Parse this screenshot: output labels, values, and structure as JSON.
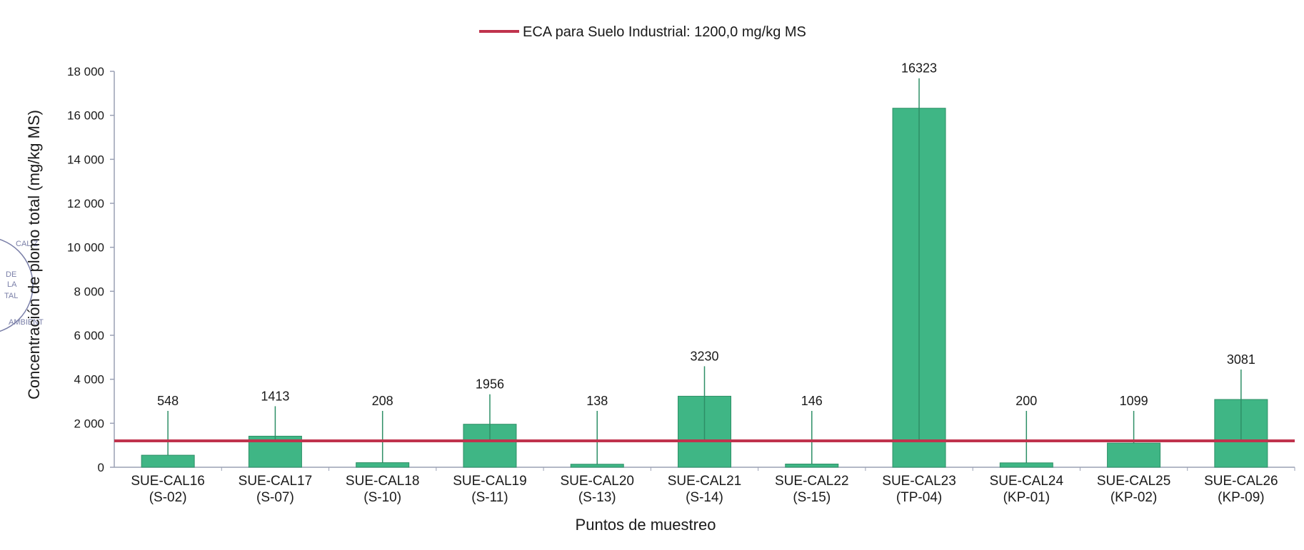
{
  "colors": {
    "bar_fill": "#3fb685",
    "bar_stroke": "#2e8f66",
    "threshold_line": "#c0334d",
    "axis": "#9aa0b4",
    "stamp": "#7a7fa8"
  },
  "legend": {
    "threshold_label": "ECA para Suelo Industrial: 1200,0 mg/kg MS"
  },
  "chart_data": {
    "type": "bar",
    "title": "",
    "xlabel": "Puntos de muestreo",
    "ylabel": "Concentración de plomo total (mg/kg MS)",
    "ylim": [
      0,
      18000
    ],
    "yticks": [
      0,
      2000,
      4000,
      6000,
      8000,
      10000,
      12000,
      14000,
      16000,
      18000
    ],
    "ytick_labels": [
      "0",
      "2 000",
      "4 000",
      "6 000",
      "8 000",
      "10 000",
      "12 000",
      "14 000",
      "16 000",
      "18 000"
    ],
    "categories": [
      [
        "SUE-CAL16",
        "(S-02)"
      ],
      [
        "SUE-CAL17",
        "(S-07)"
      ],
      [
        "SUE-CAL18",
        "(S-10)"
      ],
      [
        "SUE-CAL19",
        "(S-11)"
      ],
      [
        "SUE-CAL20",
        "(S-13)"
      ],
      [
        "SUE-CAL21",
        "(S-14)"
      ],
      [
        "SUE-CAL22",
        "(S-15)"
      ],
      [
        "SUE-CAL23",
        "(TP-04)"
      ],
      [
        "SUE-CAL24",
        "(KP-01)"
      ],
      [
        "SUE-CAL25",
        "(KP-02)"
      ],
      [
        "SUE-CAL26",
        "(KP-09)"
      ]
    ],
    "values": [
      548,
      1413,
      208,
      1956,
      138,
      3230,
      146,
      16323,
      200,
      1099,
      3081
    ],
    "value_labels": [
      "548",
      "1413",
      "208",
      "1956",
      "138",
      "3230",
      "146",
      "16323",
      "200",
      "1099",
      "3081"
    ],
    "threshold": {
      "value": 1200,
      "name": "ECA para Suelo Industrial: 1200,0 mg/kg MS"
    },
    "legend_position": "top-center",
    "grid": false
  },
  "stamp": {
    "lines": [
      "CALIZ",
      "DE",
      "LA",
      "TAL",
      "AMBIENT"
    ]
  }
}
